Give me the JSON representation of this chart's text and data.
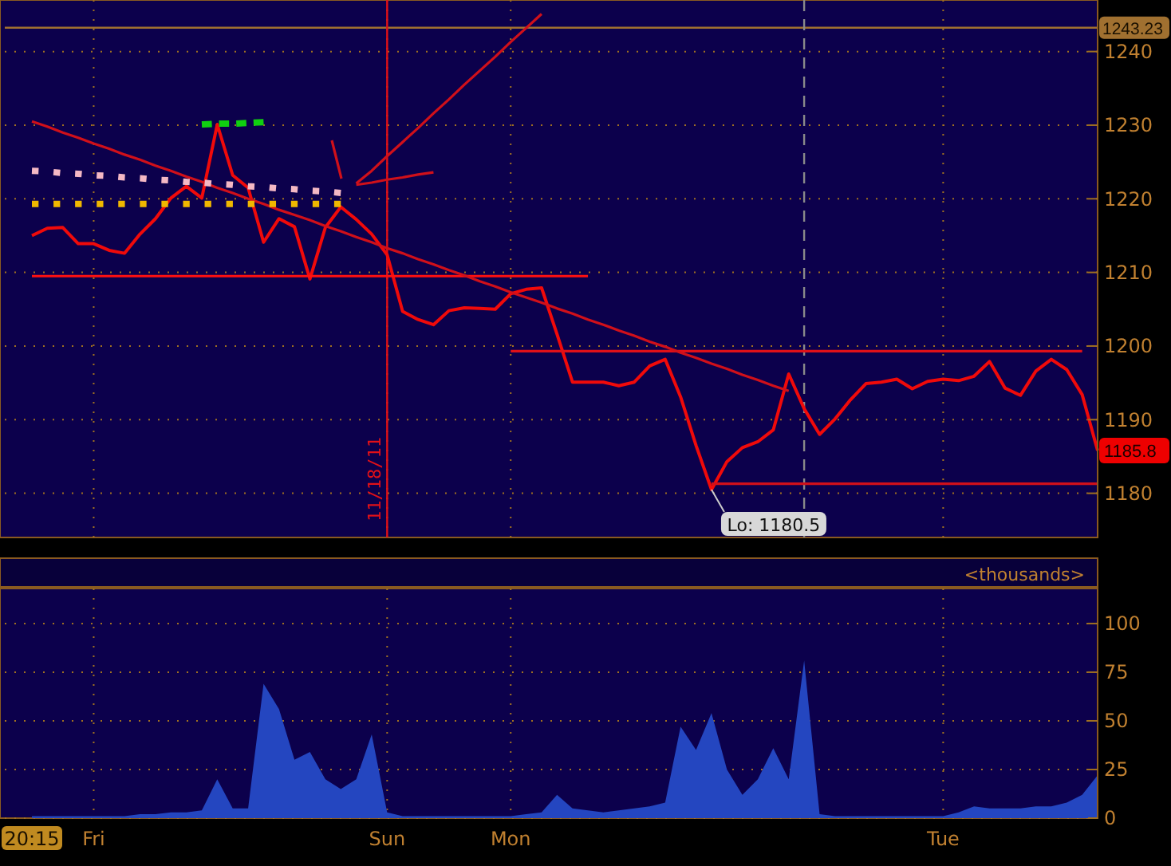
{
  "chart_data": [
    {
      "type": "line",
      "categories": [
        null,
        null,
        null,
        null,
        null,
        null,
        null,
        null,
        null,
        null,
        null,
        null,
        null,
        null,
        null,
        null,
        null,
        null,
        null,
        null,
        null,
        null,
        null,
        null,
        null,
        null,
        null,
        null,
        null,
        null,
        null,
        null,
        null,
        null,
        null,
        null,
        null,
        null,
        null,
        null,
        null,
        null,
        null,
        null,
        null,
        null,
        null,
        null,
        null,
        null,
        null,
        null,
        null,
        null,
        null,
        null,
        null,
        null,
        null,
        null,
        null,
        null,
        null,
        null,
        null,
        null,
        null,
        null,
        null,
        null
      ],
      "ylim": [
        1174,
        1247
      ],
      "yticks": [
        1180,
        1190,
        1200,
        1210,
        1220,
        1230,
        1240
      ],
      "tick_labels": "y",
      "grid": true,
      "series": [
        {
          "color": "#f00a0a",
          "values": [
            1215.0,
            1216.0,
            1216.1,
            1213.9,
            1213.9,
            1213.0,
            1212.6,
            1215.2,
            1217.3,
            1220.1,
            1221.7,
            1220.1,
            1230.1,
            1223.2,
            1221.5,
            1214.1,
            1217.3,
            1216.2,
            1209.1,
            1216.1,
            1218.9,
            1217.2,
            1215.2,
            1212.4,
            1204.7,
            1203.6,
            1202.9,
            1204.8,
            1205.2,
            1205.1,
            1205.0,
            1207.1,
            1207.7,
            1207.9,
            1201.6,
            1195.1,
            1195.1,
            1195.1,
            1194.6,
            1195.1,
            1197.3,
            1198.2,
            1193.1,
            1186.5,
            1180.5,
            1184.3,
            1186.2,
            1187.0,
            1188.6,
            1196.2,
            1191.5,
            1188.0,
            1190.1,
            1192.7,
            1194.9,
            1195.1,
            1195.5,
            1194.2,
            1195.2,
            1195.5,
            1195.3,
            1195.9,
            1197.9,
            1194.3,
            1193.3,
            1196.6,
            1198.2,
            1196.8,
            1193.4,
            1185.8
          ]
        },
        {
          "color": "#ff1010",
          "values": [
            1209.5,
            1209.5,
            1209.5,
            1209.5,
            1209.5,
            1209.5,
            1209.5,
            1209.5,
            1209.5,
            1209.5,
            1209.5,
            1209.5,
            1209.5,
            1209.5,
            1209.5,
            1209.5,
            1209.5,
            1209.5,
            1209.5,
            1209.5,
            1209.5,
            1209.5,
            1209.5,
            1209.5,
            1209.5,
            1209.5,
            1209.5,
            1209.5,
            1209.5,
            1209.5,
            1209.5,
            1209.5,
            1209.5,
            1209.5,
            1209.5,
            1209.5,
            1209.5,
            null,
            null,
            null,
            null,
            null,
            null,
            null,
            null,
            null,
            null,
            null,
            null,
            null,
            null,
            null,
            null,
            null,
            null,
            null,
            null,
            null,
            null,
            null,
            null,
            null,
            null,
            null,
            null,
            null,
            null,
            null,
            null,
            null
          ]
        },
        {
          "color": "#e01018",
          "values": [
            null,
            null,
            null,
            null,
            null,
            null,
            null,
            null,
            null,
            null,
            null,
            null,
            null,
            null,
            null,
            null,
            null,
            null,
            null,
            null,
            null,
            null,
            null,
            null,
            null,
            null,
            null,
            null,
            null,
            null,
            null,
            1199.3,
            1199.3,
            1199.3,
            1199.3,
            1199.3,
            1199.3,
            1199.3,
            1199.3,
            1199.3,
            1199.3,
            1199.3,
            1199.3,
            1199.3,
            1199.3,
            1199.3,
            1199.3,
            1199.3,
            1199.3,
            1199.3,
            1199.3,
            1199.3,
            1199.3,
            1199.3,
            1199.3,
            1199.3,
            1199.3,
            1199.3,
            1199.3,
            1199.3,
            1199.3,
            1199.3,
            1199.3,
            1199.3,
            1199.3,
            1199.3,
            1199.3,
            1199.3,
            1199.3,
            null
          ]
        },
        {
          "color": "#d0101a",
          "values": [
            null,
            null,
            null,
            null,
            null,
            null,
            null,
            null,
            null,
            null,
            null,
            null,
            null,
            null,
            null,
            null,
            null,
            null,
            null,
            null,
            null,
            null,
            null,
            null,
            null,
            null,
            null,
            null,
            null,
            null,
            null,
            null,
            null,
            null,
            null,
            null,
            null,
            null,
            null,
            null,
            null,
            null,
            null,
            null,
            1181.3,
            1181.3,
            1181.3,
            1181.3,
            1181.3,
            1181.3,
            1181.3,
            1181.3,
            1181.3,
            1181.3,
            1181.3,
            1181.3,
            1181.3,
            1181.3,
            1181.3,
            1181.3,
            1181.3,
            1181.3,
            1181.3,
            1181.3,
            1181.3,
            1181.3,
            1181.3,
            1181.3,
            1181.3,
            1181.3
          ]
        },
        {
          "color": "#d0101a",
          "values": [
            1230.5,
            1229.8,
            1229.0,
            1228.3,
            1227.5,
            1226.8,
            1226.0,
            1225.3,
            1224.5,
            1223.8,
            1223.0,
            1222.3,
            1221.5,
            1220.8,
            1220.0,
            1219.3,
            1218.5,
            1217.8,
            1217.1,
            1216.3,
            1215.6,
            1214.8,
            1214.1,
            1213.3,
            1212.6,
            1211.8,
            1211.1,
            1210.3,
            1209.6,
            1208.8,
            1208.1,
            1207.3,
            1206.6,
            1205.9,
            1205.1,
            1204.4,
            1203.6,
            1202.9,
            1202.1,
            1201.4,
            1200.6,
            1199.9,
            1199.1,
            1198.4,
            1197.6,
            1196.9,
            1196.1,
            1195.4,
            1194.6,
            1193.9,
            null,
            null,
            null,
            null,
            null,
            null,
            null,
            null,
            null,
            null,
            null,
            null,
            null,
            null,
            null,
            null,
            null,
            null,
            null,
            null
          ]
        },
        {
          "color": "#d0101a",
          "values": [
            null,
            null,
            null,
            null,
            null,
            null,
            null,
            null,
            null,
            null,
            null,
            null,
            null,
            null,
            null,
            null,
            null,
            null,
            null,
            null,
            null,
            1222.1,
            1223.8,
            1225.8,
            1227.7,
            1229.6,
            1231.6,
            1233.5,
            1235.5,
            1237.4,
            1239.3,
            1241.3,
            1243.2,
            1245.1,
            null,
            null,
            null,
            null,
            null,
            null,
            null,
            null,
            null,
            null,
            null,
            null,
            null,
            null,
            null,
            null,
            null,
            null,
            null,
            null,
            null,
            null,
            null,
            null,
            null,
            null,
            null,
            null,
            null,
            null,
            null,
            null,
            null,
            null,
            null,
            null
          ]
        },
        {
          "color": "#d0101a",
          "values": [
            null,
            null,
            null,
            null,
            null,
            null,
            null,
            null,
            null,
            null,
            null,
            null,
            null,
            null,
            null,
            null,
            null,
            null,
            null,
            null,
            null,
            1221.9,
            1222.2,
            1222.6,
            1222.9,
            1223.3,
            1223.6,
            null,
            null,
            null,
            null,
            null,
            null,
            null,
            null,
            null,
            null,
            null,
            null,
            null,
            null,
            null,
            null,
            null,
            null,
            null,
            null,
            null,
            null,
            null,
            null,
            null,
            null,
            null,
            null,
            null,
            null,
            null,
            null,
            null,
            null,
            null,
            null,
            null,
            null,
            null,
            null,
            null,
            null,
            null
          ]
        },
        {
          "color": "#f4b8c4",
          "line_style": "dotted",
          "values": [
            1223.8,
            1223.7,
            1223.5,
            1223.4,
            1223.2,
            1223.1,
            1222.9,
            1222.8,
            1222.6,
            1222.5,
            1222.3,
            1222.2,
            1222.0,
            1221.9,
            1221.7,
            1221.6,
            1221.4,
            1221.3,
            1221.1,
            1221.0,
            1220.8,
            null,
            null,
            null,
            null,
            null,
            null,
            null,
            null,
            null,
            null,
            null,
            null,
            null,
            null,
            null,
            null,
            null,
            null,
            null,
            null,
            null,
            null,
            null,
            null,
            null,
            null,
            null,
            null,
            null,
            null,
            null,
            null,
            null,
            null,
            null,
            null,
            null,
            null,
            null,
            null,
            null,
            null,
            null,
            null,
            null,
            null,
            null,
            null,
            null
          ]
        },
        {
          "color": "#f0b800",
          "line_style": "dotted",
          "values": [
            1219.3,
            1219.3,
            1219.3,
            1219.3,
            1219.3,
            1219.3,
            1219.3,
            1219.3,
            1219.3,
            1219.3,
            1219.3,
            1219.3,
            1219.3,
            1219.3,
            1219.3,
            1219.3,
            1219.3,
            1219.3,
            1219.3,
            1219.3,
            1219.3,
            null,
            null,
            null,
            null,
            null,
            null,
            null,
            null,
            null,
            null,
            null,
            null,
            null,
            null,
            null,
            null,
            null,
            null,
            null,
            null,
            null,
            null,
            null,
            null,
            null,
            null,
            null,
            null,
            null,
            null,
            null,
            null,
            null,
            null,
            null,
            null,
            null,
            null,
            null,
            null,
            null,
            null,
            null,
            null,
            null,
            null,
            null,
            null,
            null
          ]
        },
        {
          "color": "#10d010",
          "line_style": "dashed",
          "values": [
            null,
            null,
            null,
            null,
            null,
            null,
            null,
            null,
            null,
            null,
            null,
            1230.1,
            1230.2,
            1230.2,
            1230.3,
            1230.4,
            null,
            null,
            null,
            null,
            null,
            null,
            null,
            null,
            null,
            null,
            null,
            null,
            null,
            null,
            null,
            null,
            null,
            null,
            null,
            null,
            null,
            null,
            null,
            null,
            null,
            null,
            null,
            null,
            null,
            null,
            null,
            null,
            null,
            null,
            null,
            null,
            null,
            null,
            null,
            null,
            null,
            null,
            null,
            null,
            null,
            null,
            null,
            null,
            null,
            null,
            null,
            null,
            null,
            null
          ]
        }
      ],
      "ref_lines": [
        {
          "axis": "y",
          "value": 1243.23,
          "label": "1243.23",
          "color": "#a07030"
        }
      ],
      "annotations": [
        {
          "text": "Lo: 1180.5",
          "y": 1180.5
        },
        "11/18/11",
        "1185.8"
      ]
    },
    {
      "type": "area",
      "title": "<thousands>",
      "categories": [
        "20:15",
        null,
        null,
        null,
        "Fri",
        null,
        null,
        null,
        null,
        null,
        null,
        null,
        null,
        null,
        null,
        null,
        null,
        null,
        null,
        null,
        null,
        null,
        null,
        "Sun",
        null,
        null,
        null,
        null,
        null,
        null,
        null,
        "Mon",
        null,
        null,
        null,
        null,
        null,
        null,
        null,
        null,
        null,
        null,
        null,
        null,
        null,
        null,
        null,
        null,
        null,
        null,
        null,
        null,
        null,
        null,
        null,
        null,
        null,
        null,
        null,
        "Tue",
        null,
        null,
        null,
        null,
        null,
        null,
        null,
        null,
        null,
        null
      ],
      "ylim": [
        0,
        118
      ],
      "yticks": [
        0,
        25,
        50,
        75,
        100
      ],
      "grid": true,
      "series": [
        {
          "color": "#2446c0",
          "values": [
            1,
            1,
            1,
            1,
            1,
            1,
            1,
            2,
            2,
            3,
            3,
            4,
            20,
            5,
            5,
            69,
            56,
            30,
            34,
            20,
            15,
            20,
            43,
            3,
            1,
            1,
            1,
            1,
            1,
            1,
            1,
            1,
            2,
            3,
            12,
            5,
            4,
            3,
            4,
            5,
            6,
            8,
            47,
            35,
            54,
            25,
            12,
            20,
            36,
            20,
            81,
            2,
            1,
            1,
            1,
            1,
            1,
            1,
            1,
            1,
            3,
            6,
            5,
            5,
            5,
            6,
            6,
            8,
            12,
            22
          ]
        }
      ]
    }
  ]
}
